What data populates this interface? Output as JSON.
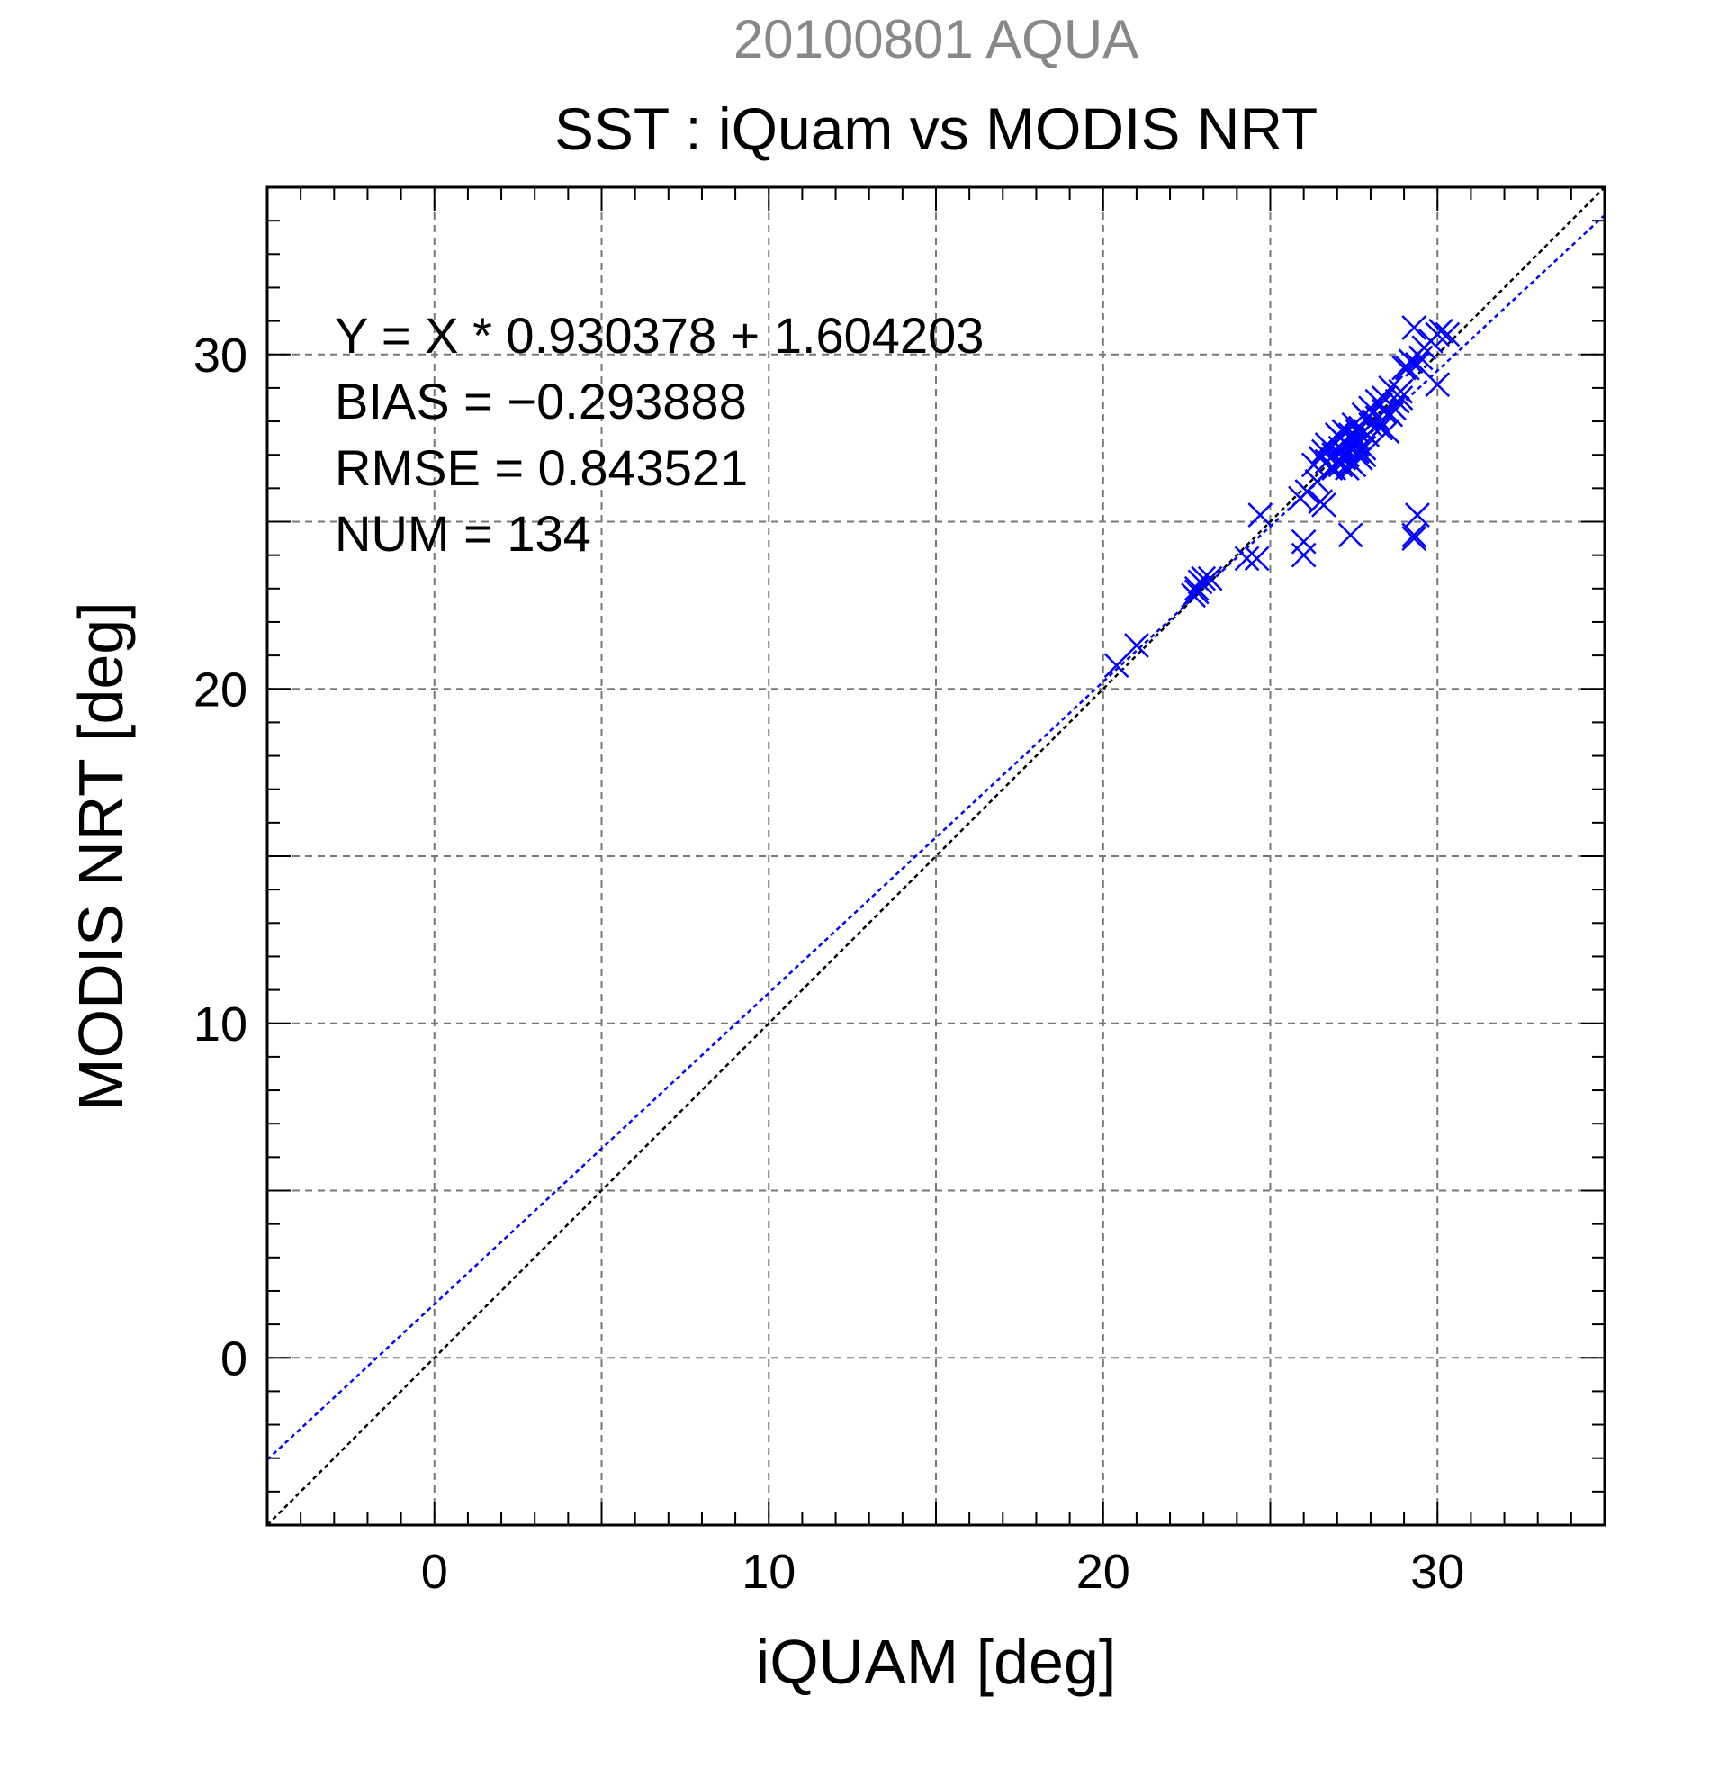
{
  "chart_data": {
    "type": "scatter",
    "suptitle": "20100801 AQUA",
    "title": "SST : iQuam vs MODIS NRT",
    "xlabel": "iQUAM [deg]",
    "ylabel": "MODIS NRT [deg]",
    "xlim": [
      -5,
      35
    ],
    "ylim": [
      -5,
      35
    ],
    "xticks": [
      0,
      10,
      20,
      30
    ],
    "yticks": [
      0,
      10,
      20,
      30
    ],
    "xtick_labels": [
      "0",
      "10",
      "20",
      "30"
    ],
    "ytick_labels": [
      "0",
      "10",
      "20",
      "30"
    ],
    "grid": true,
    "annotations": [
      "Y = X * 0.930378 + 1.604203",
      "BIAS = −0.293888",
      "RMSE = 0.843521",
      "NUM = 134"
    ],
    "fit_line": {
      "slope": 0.930378,
      "intercept": 1.604203,
      "color": "#0000ff"
    },
    "identity_line": {
      "slope": 1,
      "intercept": 0,
      "color": "#000000"
    },
    "marker": "x",
    "marker_color": "#0000ff",
    "title_color": "#000000",
    "suptitle_color": "#888888",
    "points": [
      [
        20.4,
        20.7
      ],
      [
        21.0,
        21.3
      ],
      [
        22.7,
        22.8
      ],
      [
        22.8,
        23.0
      ],
      [
        22.9,
        23.2
      ],
      [
        23.0,
        23.3
      ],
      [
        23.2,
        23.3
      ],
      [
        22.8,
        22.9
      ],
      [
        24.3,
        23.9
      ],
      [
        24.6,
        23.9
      ],
      [
        24.7,
        25.2
      ],
      [
        26.0,
        24.4
      ],
      [
        26.0,
        24.0
      ],
      [
        27.4,
        24.6
      ],
      [
        29.3,
        24.6
      ],
      [
        29.3,
        24.5
      ],
      [
        29.4,
        25.2
      ],
      [
        25.9,
        25.7
      ],
      [
        26.1,
        25.9
      ],
      [
        26.5,
        25.6
      ],
      [
        26.6,
        25.5
      ],
      [
        26.4,
        26.2
      ],
      [
        26.5,
        26.9
      ],
      [
        26.6,
        27.1
      ],
      [
        26.7,
        27.3
      ],
      [
        26.9,
        27.0
      ],
      [
        27.0,
        26.8
      ],
      [
        27.1,
        27.2
      ],
      [
        27.1,
        27.5
      ],
      [
        27.2,
        26.9
      ],
      [
        27.2,
        27.7
      ],
      [
        27.3,
        27.3
      ],
      [
        27.3,
        27.0
      ],
      [
        27.4,
        27.6
      ],
      [
        27.4,
        26.8
      ],
      [
        27.5,
        27.4
      ],
      [
        27.5,
        27.9
      ],
      [
        27.6,
        27.1
      ],
      [
        27.6,
        27.5
      ],
      [
        27.7,
        27.8
      ],
      [
        27.7,
        26.9
      ],
      [
        27.8,
        27.2
      ],
      [
        27.8,
        28.2
      ],
      [
        27.9,
        27.6
      ],
      [
        28.0,
        28.4
      ],
      [
        28.1,
        28.0
      ],
      [
        28.2,
        28.1
      ],
      [
        28.3,
        27.8
      ],
      [
        28.4,
        28.3
      ],
      [
        28.4,
        28.7
      ],
      [
        28.5,
        27.7
      ],
      [
        28.6,
        29.0
      ],
      [
        28.7,
        28.4
      ],
      [
        28.8,
        28.6
      ],
      [
        28.9,
        28.9
      ],
      [
        29.0,
        29.6
      ],
      [
        29.1,
        29.6
      ],
      [
        29.2,
        29.8
      ],
      [
        29.3,
        30.8
      ],
      [
        29.4,
        29.7
      ],
      [
        29.6,
        30.2
      ],
      [
        29.8,
        30.4
      ],
      [
        30.0,
        29.1
      ],
      [
        30.0,
        30.6
      ],
      [
        30.1,
        30.7
      ],
      [
        30.3,
        30.6
      ],
      [
        26.9,
        26.6
      ],
      [
        27.0,
        27.6
      ],
      [
        27.3,
        26.6
      ],
      [
        27.5,
        26.7
      ],
      [
        27.6,
        27.3
      ],
      [
        27.8,
        27.0
      ],
      [
        28.0,
        27.9
      ],
      [
        28.2,
        28.6
      ],
      [
        28.6,
        28.2
      ],
      [
        28.9,
        28.7
      ],
      [
        26.8,
        26.6
      ],
      [
        27.2,
        27.4
      ],
      [
        27.4,
        27.2
      ],
      [
        27.6,
        27.7
      ],
      [
        27.9,
        28.1
      ],
      [
        28.3,
        28.5
      ],
      [
        29.5,
        29.9
      ],
      [
        26.3,
        26.7
      ],
      [
        26.7,
        26.8
      ],
      [
        27.1,
        26.7
      ]
    ]
  }
}
